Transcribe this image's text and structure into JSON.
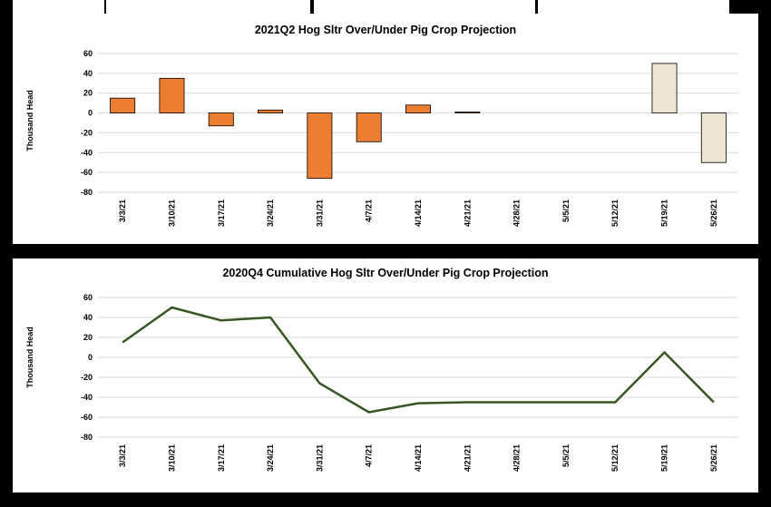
{
  "colors": {
    "bar_actual": "#ED7D31",
    "bar_projected": "#EFE4D2",
    "line": "#375623",
    "grid": "#D9D9D9"
  },
  "chart_data": [
    {
      "type": "bar",
      "title": "2021Q2 Hog Sltr Over/Under Pig Crop Projection",
      "ylabel": "Thousand Head",
      "xlabel": "",
      "categories": [
        "3/3/21",
        "3/10/21",
        "3/17/21",
        "3/24/21",
        "3/31/21",
        "4/7/21",
        "4/14/21",
        "4/21/21",
        "4/28/21",
        "5/5/21",
        "5/12/21",
        "5/19/21",
        "5/26/21"
      ],
      "values": [
        15,
        35,
        -13,
        3,
        -66,
        -29,
        8,
        1,
        null,
        null,
        null,
        50,
        -50
      ],
      "projected": [
        false,
        false,
        false,
        false,
        false,
        false,
        false,
        false,
        false,
        false,
        false,
        true,
        true
      ],
      "ylim": [
        -80,
        60
      ],
      "yticks": [
        60,
        40,
        20,
        0,
        -20,
        -40,
        -60,
        -80
      ],
      "grid": true,
      "legend": "none"
    },
    {
      "type": "line",
      "title": "2020Q4 Cumulative Hog Sltr Over/Under Pig Crop Projection",
      "ylabel": "Thousand Head",
      "xlabel": "",
      "categories": [
        "3/3/21",
        "3/10/21",
        "3/17/21",
        "3/24/21",
        "3/31/21",
        "4/7/21",
        "4/14/21",
        "4/21/21",
        "4/28/21",
        "5/5/21",
        "5/12/21",
        "5/19/21",
        "5/26/21"
      ],
      "values": [
        15,
        50,
        37,
        40,
        -26,
        -55,
        -46,
        -45,
        -45,
        -45,
        -45,
        5,
        -45
      ],
      "ylim": [
        -80,
        60
      ],
      "yticks": [
        60,
        40,
        20,
        0,
        -20,
        -40,
        -60,
        -80
      ],
      "grid": true,
      "legend": "none"
    }
  ]
}
